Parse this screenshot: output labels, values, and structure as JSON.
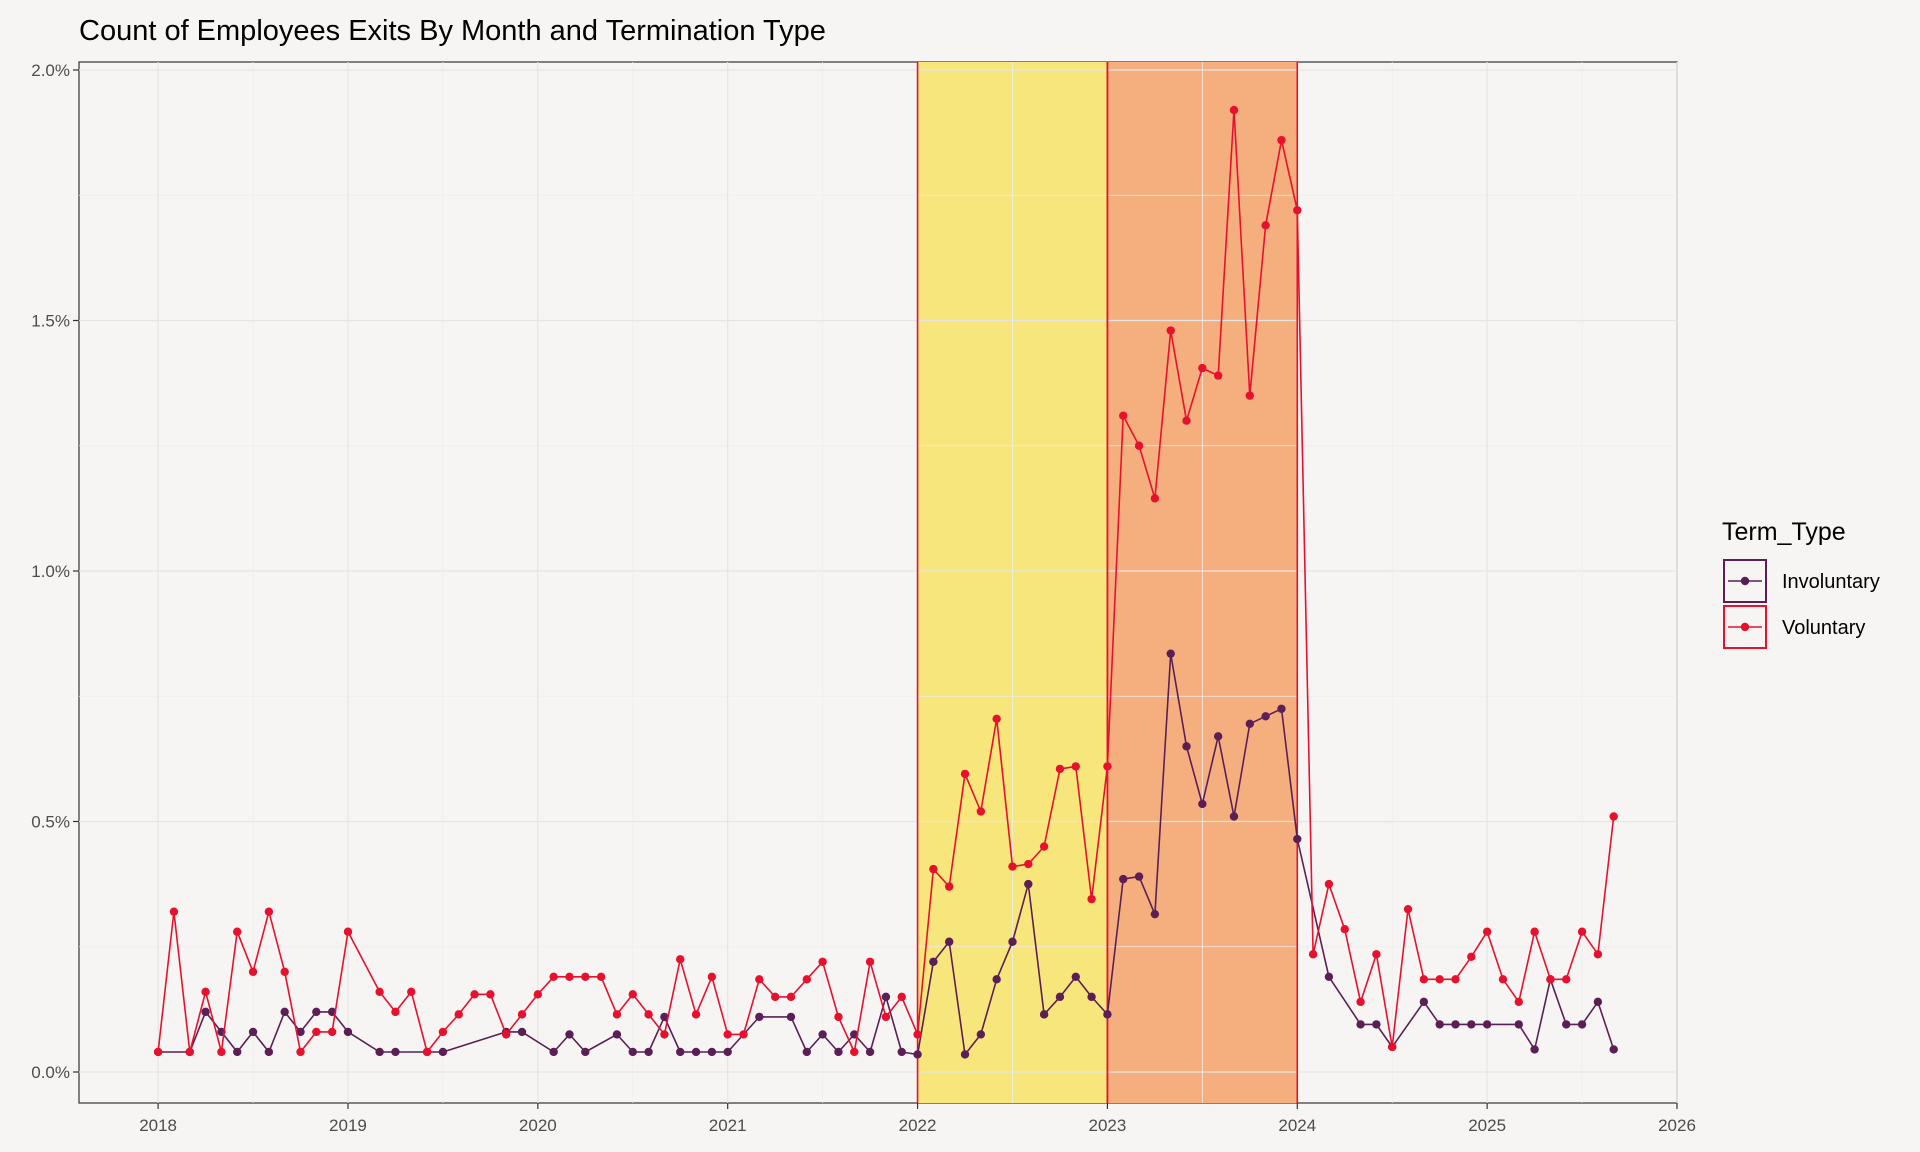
{
  "chart_data": {
    "type": "line",
    "title": "Count of Employees Exits By Month and Termination Type",
    "xlabel": "",
    "ylabel": "",
    "x_range": [
      "2017-08",
      "2026-01"
    ],
    "ylim": [
      0,
      2.0
    ],
    "y_ticks": [
      0,
      0.5,
      1.0,
      1.5,
      2.0
    ],
    "y_tick_labels": [
      "0.0%",
      "0.5%",
      "1.0%",
      "1.5%",
      "2.0%"
    ],
    "x_ticks": [
      2018,
      2019,
      2020,
      2021,
      2022,
      2023,
      2024,
      2025,
      2026
    ],
    "x_tick_labels": [
      "2018",
      "2019",
      "2020",
      "2021",
      "2022",
      "2023",
      "2024",
      "2025",
      "2026"
    ],
    "grid": true,
    "legend": {
      "title": "Term_Type",
      "position": "right"
    },
    "shaded_regions": [
      {
        "start": "2022-01",
        "end": "2023-01",
        "color": "#f6e67c"
      },
      {
        "start": "2023-01",
        "end": "2024-01",
        "color": "#f5af7e"
      }
    ],
    "series": [
      {
        "name": "Involuntary",
        "color": "#5c1f55",
        "points": [
          [
            "2018-01",
            0.04
          ],
          [
            "2018-03",
            0.04
          ],
          [
            "2018-04",
            0.12
          ],
          [
            "2018-05",
            0.08
          ],
          [
            "2018-06",
            0.04
          ],
          [
            "2018-07",
            0.08
          ],
          [
            "2018-08",
            0.04
          ],
          [
            "2018-09",
            0.12
          ],
          [
            "2018-10",
            0.08
          ],
          [
            "2018-11",
            0.12
          ],
          [
            "2018-12",
            0.12
          ],
          [
            "2019-01",
            0.08
          ],
          [
            "2019-03",
            0.04
          ],
          [
            "2019-04",
            0.04
          ],
          [
            "2019-06",
            0.04
          ],
          [
            "2019-07",
            0.04
          ],
          [
            "2019-11",
            0.08
          ],
          [
            "2019-12",
            0.08
          ],
          [
            "2020-02",
            0.04
          ],
          [
            "2020-03",
            0.075
          ],
          [
            "2020-04",
            0.04
          ],
          [
            "2020-06",
            0.075
          ],
          [
            "2020-07",
            0.04
          ],
          [
            "2020-08",
            0.04
          ],
          [
            "2020-09",
            0.11
          ],
          [
            "2020-10",
            0.04
          ],
          [
            "2020-11",
            0.04
          ],
          [
            "2020-12",
            0.04
          ],
          [
            "2021-01",
            0.04
          ],
          [
            "2021-03",
            0.11
          ],
          [
            "2021-05",
            0.11
          ],
          [
            "2021-06",
            0.04
          ],
          [
            "2021-07",
            0.075
          ],
          [
            "2021-08",
            0.04
          ],
          [
            "2021-09",
            0.075
          ],
          [
            "2021-10",
            0.04
          ],
          [
            "2021-11",
            0.15
          ],
          [
            "2021-12",
            0.04
          ],
          [
            "2022-01",
            0.035
          ],
          [
            "2022-02",
            0.22
          ],
          [
            "2022-03",
            0.26
          ],
          [
            "2022-04",
            0.035
          ],
          [
            "2022-05",
            0.075
          ],
          [
            "2022-06",
            0.185
          ],
          [
            "2022-07",
            0.26
          ],
          [
            "2022-08",
            0.375
          ],
          [
            "2022-09",
            0.115
          ],
          [
            "2022-10",
            0.15
          ],
          [
            "2022-11",
            0.19
          ],
          [
            "2022-12",
            0.15
          ],
          [
            "2023-01",
            0.115
          ],
          [
            "2023-02",
            0.385
          ],
          [
            "2023-03",
            0.39
          ],
          [
            "2023-04",
            0.315
          ],
          [
            "2023-05",
            0.835
          ],
          [
            "2023-06",
            0.65
          ],
          [
            "2023-07",
            0.535
          ],
          [
            "2023-08",
            0.67
          ],
          [
            "2023-09",
            0.51
          ],
          [
            "2023-10",
            0.695
          ],
          [
            "2023-11",
            0.71
          ],
          [
            "2023-12",
            0.725
          ],
          [
            "2024-01",
            0.465
          ],
          [
            "2024-03",
            0.19
          ],
          [
            "2024-05",
            0.095
          ],
          [
            "2024-06",
            0.095
          ],
          [
            "2024-07",
            0.05
          ],
          [
            "2024-09",
            0.14
          ],
          [
            "2024-10",
            0.095
          ],
          [
            "2024-11",
            0.095
          ],
          [
            "2024-12",
            0.095
          ],
          [
            "2025-01",
            0.095
          ],
          [
            "2025-03",
            0.095
          ],
          [
            "2025-04",
            0.045
          ],
          [
            "2025-05",
            0.185
          ],
          [
            "2025-06",
            0.095
          ],
          [
            "2025-07",
            0.095
          ],
          [
            "2025-08",
            0.14
          ],
          [
            "2025-09",
            0.045
          ]
        ]
      },
      {
        "name": "Voluntary",
        "color": "#e8112d",
        "points": [
          [
            "2018-01",
            0.04
          ],
          [
            "2018-02",
            0.32
          ],
          [
            "2018-03",
            0.04
          ],
          [
            "2018-04",
            0.16
          ],
          [
            "2018-05",
            0.04
          ],
          [
            "2018-06",
            0.28
          ],
          [
            "2018-07",
            0.2
          ],
          [
            "2018-08",
            0.32
          ],
          [
            "2018-09",
            0.2
          ],
          [
            "2018-10",
            0.04
          ],
          [
            "2018-11",
            0.08
          ],
          [
            "2018-12",
            0.08
          ],
          [
            "2019-01",
            0.28
          ],
          [
            "2019-03",
            0.16
          ],
          [
            "2019-04",
            0.12
          ],
          [
            "2019-05",
            0.16
          ],
          [
            "2019-06",
            0.04
          ],
          [
            "2019-07",
            0.08
          ],
          [
            "2019-08",
            0.115
          ],
          [
            "2019-09",
            0.155
          ],
          [
            "2019-10",
            0.155
          ],
          [
            "2019-11",
            0.075
          ],
          [
            "2019-12",
            0.115
          ],
          [
            "2020-01",
            0.155
          ],
          [
            "2020-02",
            0.19
          ],
          [
            "2020-03",
            0.19
          ],
          [
            "2020-04",
            0.19
          ],
          [
            "2020-05",
            0.19
          ],
          [
            "2020-06",
            0.115
          ],
          [
            "2020-07",
            0.155
          ],
          [
            "2020-08",
            0.115
          ],
          [
            "2020-09",
            0.075
          ],
          [
            "2020-10",
            0.225
          ],
          [
            "2020-11",
            0.115
          ],
          [
            "2020-12",
            0.19
          ],
          [
            "2021-01",
            0.075
          ],
          [
            "2021-02",
            0.075
          ],
          [
            "2021-03",
            0.185
          ],
          [
            "2021-04",
            0.15
          ],
          [
            "2021-05",
            0.15
          ],
          [
            "2021-06",
            0.185
          ],
          [
            "2021-07",
            0.22
          ],
          [
            "2021-08",
            0.11
          ],
          [
            "2021-09",
            0.04
          ],
          [
            "2021-10",
            0.22
          ],
          [
            "2021-11",
            0.11
          ],
          [
            "2021-12",
            0.15
          ],
          [
            "2022-01",
            0.075
          ],
          [
            "2022-02",
            0.405
          ],
          [
            "2022-03",
            0.37
          ],
          [
            "2022-04",
            0.595
          ],
          [
            "2022-05",
            0.52
          ],
          [
            "2022-06",
            0.705
          ],
          [
            "2022-07",
            0.41
          ],
          [
            "2022-08",
            0.415
          ],
          [
            "2022-09",
            0.45
          ],
          [
            "2022-10",
            0.605
          ],
          [
            "2022-11",
            0.61
          ],
          [
            "2022-12",
            0.345
          ],
          [
            "2023-01",
            0.61
          ],
          [
            "2023-02",
            1.31
          ],
          [
            "2023-03",
            1.25
          ],
          [
            "2023-04",
            1.145
          ],
          [
            "2023-05",
            1.48
          ],
          [
            "2023-06",
            1.3
          ],
          [
            "2023-07",
            1.405
          ],
          [
            "2023-08",
            1.39
          ],
          [
            "2023-09",
            1.92
          ],
          [
            "2023-10",
            1.35
          ],
          [
            "2023-11",
            1.69
          ],
          [
            "2023-12",
            1.86
          ],
          [
            "2024-01",
            1.72
          ],
          [
            "2024-02",
            0.235
          ],
          [
            "2024-03",
            0.375
          ],
          [
            "2024-04",
            0.285
          ],
          [
            "2024-05",
            0.14
          ],
          [
            "2024-06",
            0.235
          ],
          [
            "2024-07",
            0.05
          ],
          [
            "2024-08",
            0.325
          ],
          [
            "2024-09",
            0.185
          ],
          [
            "2024-10",
            0.185
          ],
          [
            "2024-11",
            0.185
          ],
          [
            "2024-12",
            0.23
          ],
          [
            "2025-01",
            0.28
          ],
          [
            "2025-02",
            0.185
          ],
          [
            "2025-03",
            0.14
          ],
          [
            "2025-04",
            0.28
          ],
          [
            "2025-05",
            0.185
          ],
          [
            "2025-06",
            0.185
          ],
          [
            "2025-07",
            0.28
          ],
          [
            "2025-08",
            0.235
          ],
          [
            "2025-09",
            0.51
          ]
        ]
      }
    ]
  }
}
